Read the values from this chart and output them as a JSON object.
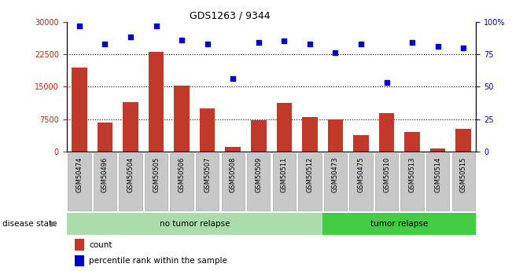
{
  "title": "GDS1263 / 9344",
  "samples": [
    "GSM50474",
    "GSM50496",
    "GSM50504",
    "GSM50505",
    "GSM50506",
    "GSM50507",
    "GSM50508",
    "GSM50509",
    "GSM50511",
    "GSM50512",
    "GSM50473",
    "GSM50475",
    "GSM50510",
    "GSM50513",
    "GSM50514",
    "GSM50515"
  ],
  "counts": [
    19500,
    6800,
    11500,
    23000,
    15200,
    10000,
    1200,
    7300,
    11200,
    8000,
    7500,
    3800,
    9000,
    4500,
    700,
    5200
  ],
  "percentiles": [
    97,
    83,
    88,
    97,
    86,
    83,
    56,
    84,
    85,
    83,
    76,
    83,
    53,
    84,
    81,
    80
  ],
  "no_tumor_count": 10,
  "tumor_count": 6,
  "ylim_left": [
    0,
    30000
  ],
  "ylim_right": [
    0,
    100
  ],
  "yticks_left": [
    0,
    7500,
    15000,
    22500,
    30000
  ],
  "yticks_right": [
    0,
    25,
    50,
    75,
    100
  ],
  "bar_color": "#C0392B",
  "dot_color": "#0000CC",
  "tick_color_left": "#CC2200",
  "tick_color_right": "#0000CC",
  "no_relapse_bg": "#AADDAA",
  "tumor_relapse_bg": "#44CC44",
  "sample_label_bg": "#C8C8C8",
  "sample_label_edge": "#AAAAAA"
}
